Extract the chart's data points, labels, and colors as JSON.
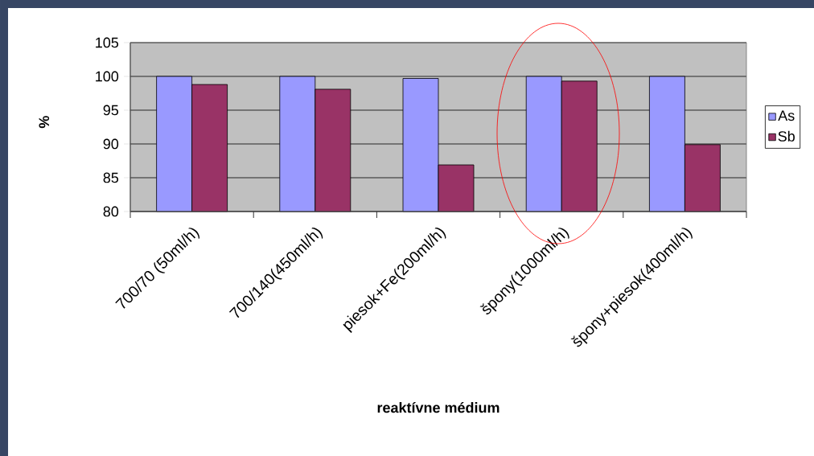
{
  "chart_data": {
    "type": "bar",
    "categories": [
      "700/70 (50ml/h)",
      "700/140(450ml/h)",
      "piesok+Fe(200ml/h)",
      "špony(1000ml/h)",
      "špony+piesok(400ml/h)"
    ],
    "series": [
      {
        "name": "As",
        "color": "#9999ff",
        "values": [
          100,
          100,
          99.7,
          100,
          100
        ]
      },
      {
        "name": "Sb",
        "color": "#993366",
        "values": [
          98.8,
          98.1,
          86.9,
          99.3,
          89.9
        ]
      }
    ],
    "xlabel": "reaktívne médium",
    "ylabel": "%",
    "ylim": [
      80,
      105
    ],
    "yticks": [
      80,
      85,
      90,
      95,
      100,
      105
    ],
    "grid": "y",
    "legend": "right"
  }
}
